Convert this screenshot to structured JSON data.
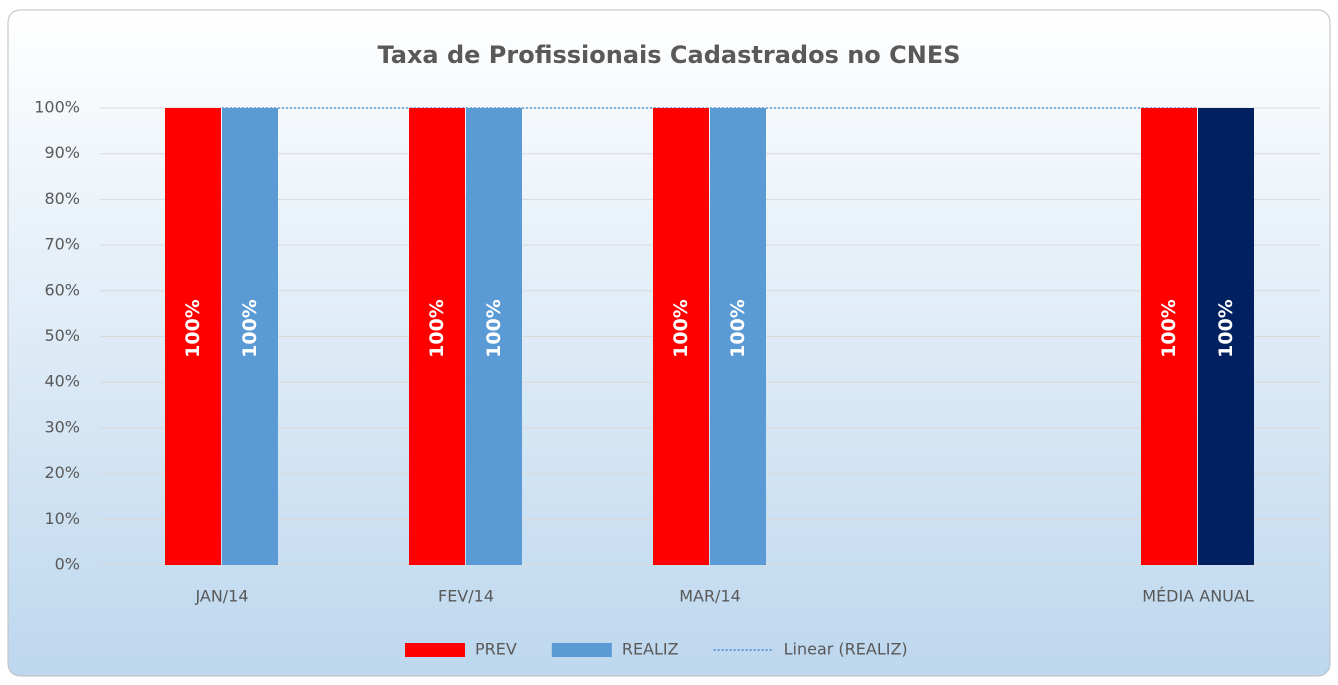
{
  "chart_data": {
    "type": "bar",
    "title": "Taxa de Profissionais Cadastrados no CNES",
    "categories": [
      "JAN/14",
      "FEV/14",
      "MAR/14",
      null,
      "MÉDIA ANUAL"
    ],
    "series": [
      {
        "name": "PREV",
        "color": "#ff0000",
        "values": [
          100,
          100,
          100,
          null,
          100
        ],
        "value_labels": [
          "100%",
          "100%",
          "100%",
          null,
          "100%"
        ]
      },
      {
        "name": "REALIZ",
        "color": "#5b9bd5",
        "colors": [
          "#5b9bd5",
          "#5b9bd5",
          "#5b9bd5",
          null,
          "#002060"
        ],
        "values": [
          100,
          100,
          100,
          null,
          100
        ],
        "value_labels": [
          "100%",
          "100%",
          "100%",
          null,
          "100%"
        ]
      },
      {
        "name": "Linear (REALIZ)",
        "type": "trendline",
        "color": "#5b9bd5",
        "values": [
          100,
          100,
          100,
          100,
          100
        ]
      }
    ],
    "ylim": [
      0,
      100
    ],
    "yticks": [
      {
        "value": 0,
        "label": "0%"
      },
      {
        "value": 10,
        "label": "10%"
      },
      {
        "value": 20,
        "label": "20%"
      },
      {
        "value": 30,
        "label": "30%"
      },
      {
        "value": 40,
        "label": "40%"
      },
      {
        "value": 50,
        "label": "50%"
      },
      {
        "value": 60,
        "label": "60%"
      },
      {
        "value": 70,
        "label": "70%"
      },
      {
        "value": 80,
        "label": "80%"
      },
      {
        "value": 90,
        "label": "90%"
      },
      {
        "value": 100,
        "label": "100%"
      }
    ],
    "grid": true,
    "legend": "bottom"
  }
}
